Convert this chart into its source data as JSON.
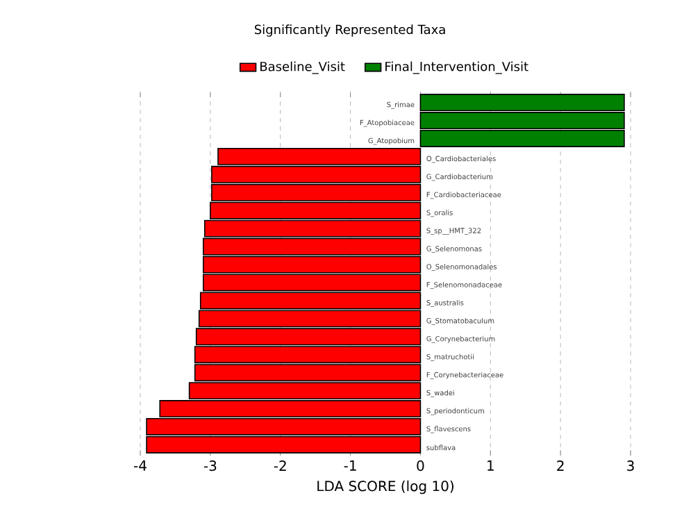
{
  "chart_data": {
    "type": "bar",
    "orientation": "horizontal",
    "title": "Significantly Represented Taxa",
    "xlabel": "LDA SCORE (log 10)",
    "categories": [
      "S_rimae",
      "F_Atopobiaceae",
      "G_Atopobium",
      "O_Cardiobacteriales",
      "G_Cardiobacterium",
      "F_Cardiobacteriaceae",
      "S_oralis",
      "S_sp__HMT_322",
      "G_Selenomonas",
      "O_Selenomonadales",
      "F_Selenomonadaceae",
      "S_australis",
      "G_Stomatobaculum",
      "G_Corynebacterium",
      "S_matruchotii",
      "F_Corynebacteriaceae",
      "S_wadei",
      "S_periodonticum",
      "S_flavescens",
      "subflava"
    ],
    "series": [
      {
        "name": "Baseline_Visit",
        "color": "#ff0000",
        "values": [
          null,
          null,
          null,
          -2.89,
          -2.98,
          -2.98,
          -3.0,
          -3.08,
          -3.1,
          -3.1,
          -3.1,
          -3.14,
          -3.16,
          -3.2,
          -3.22,
          -3.22,
          -3.3,
          -3.72,
          -3.91,
          -3.91
        ]
      },
      {
        "name": "Final_Intervention_Visit",
        "color": "#008000",
        "values": [
          2.91,
          2.91,
          2.91,
          null,
          null,
          null,
          null,
          null,
          null,
          null,
          null,
          null,
          null,
          null,
          null,
          null,
          null,
          null,
          null,
          null
        ]
      }
    ],
    "xlim": [
      -4,
      3
    ],
    "xticks": [
      -4,
      -3,
      -2,
      -1,
      0,
      1,
      2,
      3
    ],
    "grid": "x",
    "legend": "top"
  }
}
